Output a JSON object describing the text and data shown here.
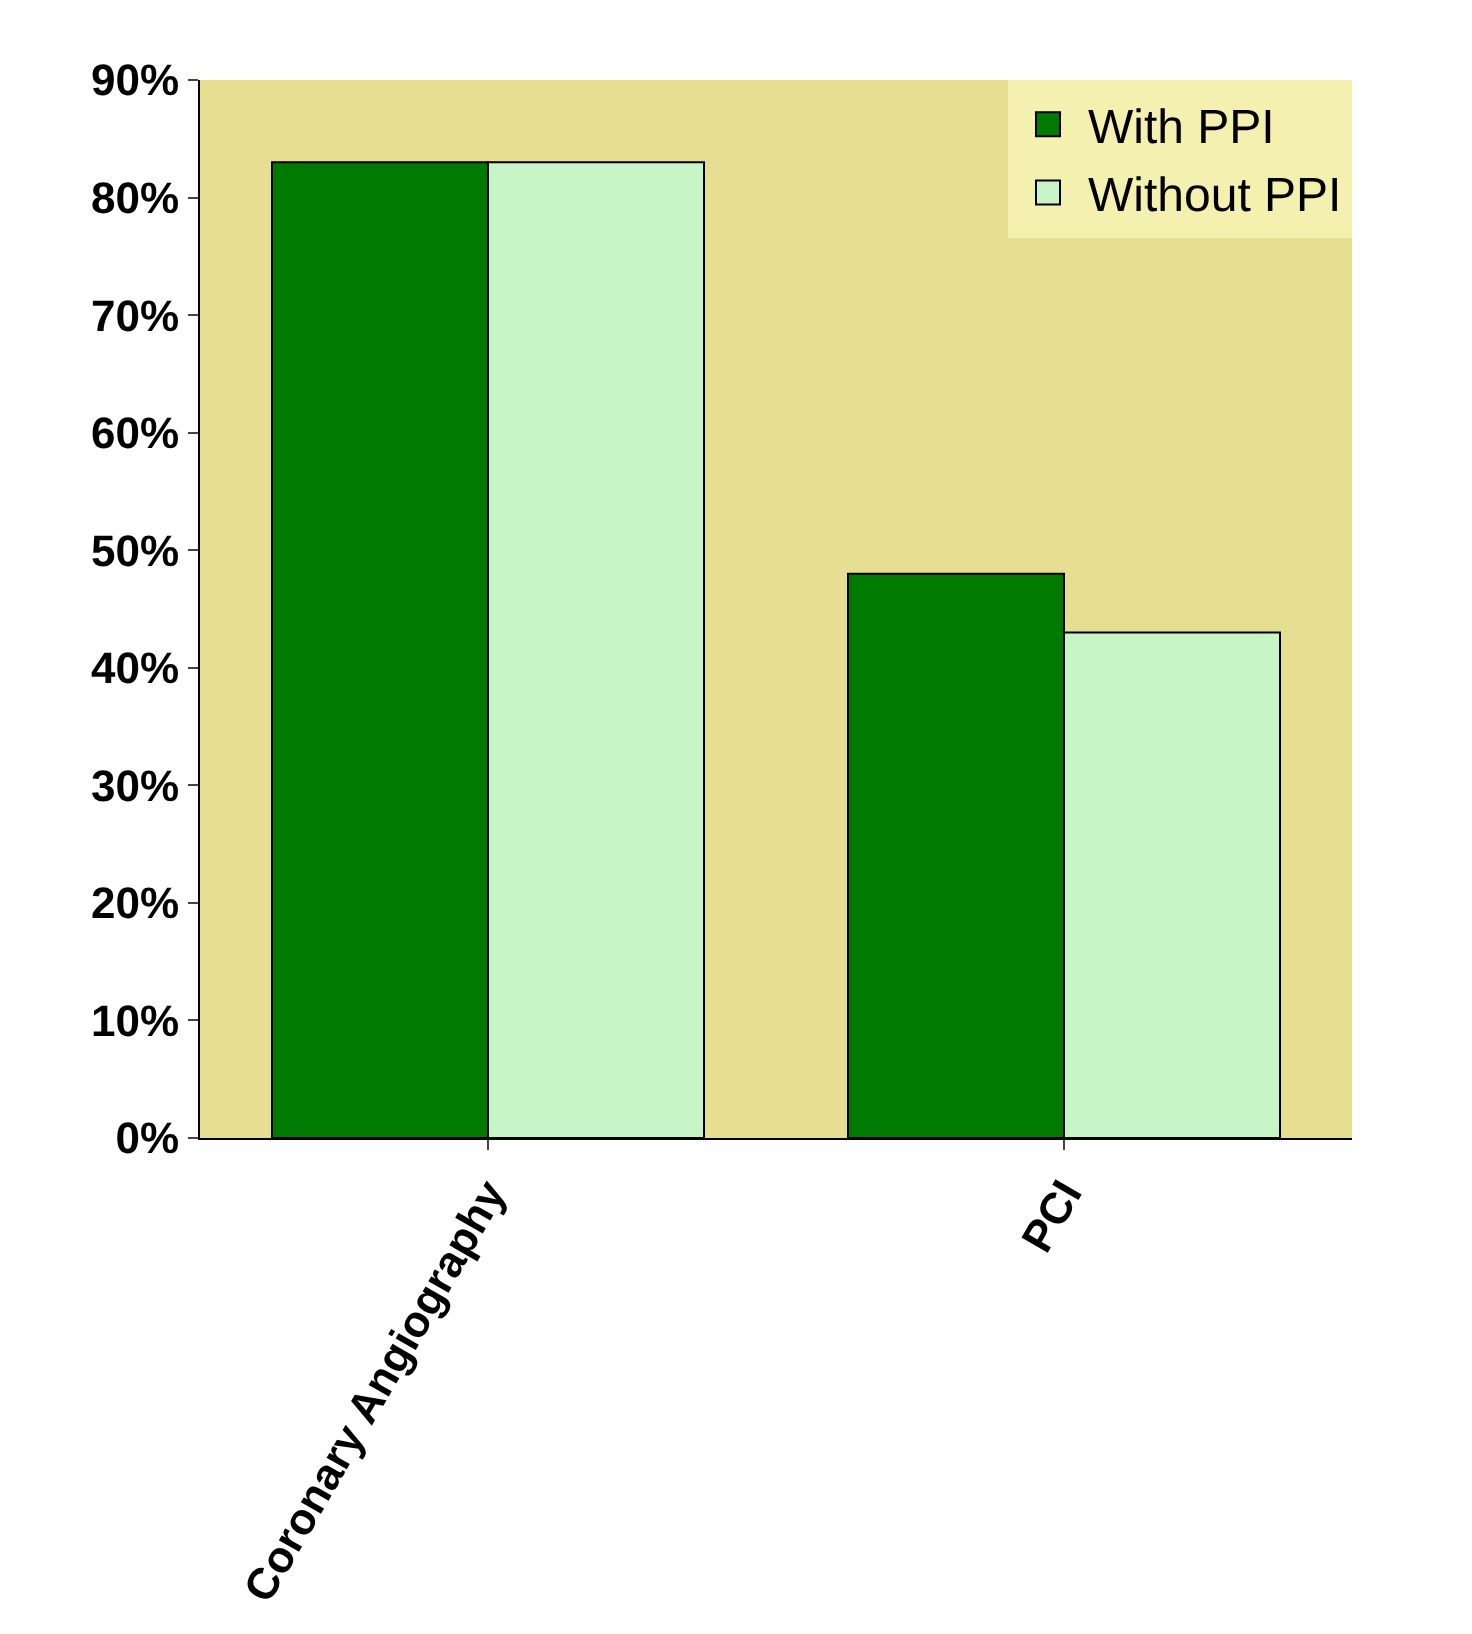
{
  "chart_data": {
    "type": "bar",
    "categories": [
      "Coronary Angiography",
      "PCI"
    ],
    "series": [
      {
        "name": "With PPI",
        "color": "#007a00",
        "values": [
          83,
          48
        ]
      },
      {
        "name": "Without PPI",
        "color": "#c8f5c8",
        "values": [
          83,
          43
        ]
      }
    ],
    "ylim": [
      0,
      90
    ],
    "yticks": [
      {
        "value": 0,
        "label": "0%"
      },
      {
        "value": 10,
        "label": "10%"
      },
      {
        "value": 20,
        "label": "20%"
      },
      {
        "value": 30,
        "label": "30%"
      },
      {
        "value": 40,
        "label": "40%"
      },
      {
        "value": 50,
        "label": "50%"
      },
      {
        "value": 60,
        "label": "60%"
      },
      {
        "value": 70,
        "label": "70%"
      },
      {
        "value": 80,
        "label": "80%"
      },
      {
        "value": 90,
        "label": "90%"
      }
    ],
    "grid": false,
    "legend": "top right"
  }
}
